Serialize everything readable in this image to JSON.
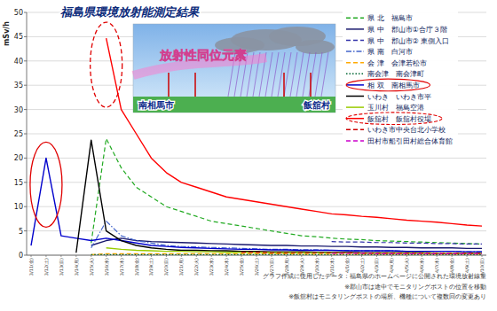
{
  "chart_data": {
    "type": "line",
    "title": "福島県環境放射能測定結果",
    "y_label": "mSv/h",
    "annotations": [
      "放射性同位元素",
      "南相馬市",
      "飯舘村",
      "グラフ作成に使用したデータ：福島県のホームページに公開された環境放射線量",
      "※郡山市は途中でモニタリングポストの位置を移動",
      "※飯舘村はモニタリングポストの場所、機種について複数回の変更あり"
    ],
    "categories": [
      "3/11(金)",
      "3/12(土)",
      "3/13(日)",
      "3/14(月)",
      "3/15(火)",
      "3/16(水)",
      "3/17(木)",
      "3/18(金)",
      "3/19(土)",
      "3/20(日)",
      "3/21(月)",
      "3/22(火)",
      "3/23(水)",
      "3/24(木)",
      "3/25(金)",
      "3/26(土)",
      "3/27(日)",
      "3/28(月)",
      "3/29(火)",
      "3/30(水)",
      "3/31(木)",
      "4/1(金)",
      "4/2(土)",
      "4/3(日)",
      "4/4(月)",
      "4/5(火)",
      "4/6(水)",
      "4/7(木)",
      "4/8(金)",
      "4/9(土)",
      "4/10(日)"
    ],
    "ylim": [
      0,
      50
    ],
    "yticks": [
      0,
      5,
      10,
      15,
      20,
      25,
      30,
      35,
      40,
      45,
      50
    ],
    "grid": true,
    "legend": "top-right",
    "series": [
      {
        "name": "県 北　福島市",
        "color": "#22aa22",
        "line_style": "dashed",
        "values": [
          null,
          null,
          null,
          null,
          2.5,
          24,
          18,
          14,
          12,
          10,
          9,
          8,
          7,
          6.5,
          6,
          5.5,
          5,
          4.5,
          4,
          3.8,
          3.5,
          3.3,
          3.2,
          3,
          2.9,
          2.8,
          2.7,
          2.6,
          2.5,
          2.4,
          2.3
        ]
      },
      {
        "name": "県 中　郡山市①合庁３階",
        "color": "#1a1a6e",
        "line_style": "solid",
        "values": [
          null,
          null,
          null,
          null,
          2,
          3,
          3.5,
          3,
          2.8,
          2.7,
          2.6,
          2.5,
          2.4,
          2.3,
          2.2,
          2.1,
          2,
          2,
          1.9,
          1.9,
          1.8,
          1.8,
          1.7,
          1.7,
          1.6,
          1.6,
          1.5,
          1.5,
          1.5,
          1.4,
          1.4
        ]
      },
      {
        "name": "県 中　郡山市② 東側入口",
        "color": "#3333aa",
        "line_style": "dashed",
        "values": [
          null,
          null,
          null,
          null,
          null,
          null,
          null,
          null,
          null,
          null,
          null,
          null,
          null,
          null,
          null,
          null,
          null,
          null,
          null,
          null,
          2.8,
          2.7,
          2.7,
          2.6,
          2.6,
          2.5,
          2.5,
          2.4,
          2.4,
          2.3,
          2.3
        ]
      },
      {
        "name": "県 南　白河市",
        "color": "#4466cc",
        "line_style": "dashdot",
        "values": [
          null,
          null,
          null,
          null,
          1.5,
          7,
          4,
          3,
          2.5,
          2,
          1.8,
          1.7,
          1.6,
          1.5,
          1.4,
          1.3,
          1.2,
          1.2,
          1.1,
          1.1,
          1,
          1,
          0.9,
          0.9,
          0.9,
          0.8,
          0.8,
          0.8,
          0.8,
          0.7,
          0.7
        ]
      },
      {
        "name": "会 津　会津若松市",
        "color": "#ffaa00",
        "line_style": "dashed",
        "values": [
          null,
          null,
          null,
          null,
          0.1,
          0.3,
          0.3,
          0.3,
          0.3,
          0.3,
          0.3,
          0.3,
          0.3,
          0.3,
          0.3,
          0.3,
          0.3,
          0.3,
          0.2,
          0.2,
          0.2,
          0.2,
          0.2,
          0.2,
          0.2,
          0.2,
          0.2,
          0.2,
          0.2,
          0.2,
          0.2
        ]
      },
      {
        "name": "南会津　南会津町",
        "color": "#006633",
        "line_style": "dotted",
        "values": [
          null,
          null,
          null,
          null,
          0.1,
          0.1,
          0.1,
          0.1,
          0.1,
          0.1,
          0.1,
          0.1,
          0.1,
          0.1,
          0.1,
          0.1,
          0.1,
          0.1,
          0.1,
          0.1,
          0.1,
          0.1,
          0.1,
          0.1,
          0.1,
          0.1,
          0.1,
          0.1,
          0.1,
          0.1,
          0.1
        ]
      },
      {
        "name": "相 双　南相馬市",
        "color": "#0000cc",
        "line_style": "solid",
        "values": [
          2,
          20,
          4,
          3.5,
          3,
          3.5,
          3,
          2.5,
          2,
          1.8,
          1.6,
          1.5,
          1.4,
          1.3,
          1.2,
          1.2,
          1.1,
          1.1,
          1,
          1,
          1,
          0.9,
          0.9,
          0.9,
          0.9,
          0.8,
          0.8,
          0.8,
          0.8,
          0.7,
          0.7
        ]
      },
      {
        "name": "いわき　いわき市平",
        "color": "#000000",
        "line_style": "solid",
        "values": [
          null,
          null,
          null,
          0.5,
          23.7,
          5,
          3,
          2,
          1.5,
          1.2,
          1,
          1,
          0.9,
          0.9,
          0.8,
          0.8,
          0.7,
          0.7,
          0.7,
          0.6,
          0.6,
          0.6,
          0.5,
          0.5,
          0.5,
          0.5,
          0.5,
          0.4,
          0.4,
          0.4,
          0.4
        ]
      },
      {
        "name": "玉川村　福島空港",
        "color": "#99cc00",
        "line_style": "solid",
        "values": [
          null,
          null,
          null,
          null,
          null,
          1.5,
          1.2,
          1,
          0.9,
          0.8,
          0.8,
          0.7,
          0.7,
          0.6,
          0.6,
          0.6,
          0.5,
          0.5,
          0.5,
          0.5,
          0.5,
          0.5,
          0.4,
          0.4,
          0.4,
          0.4,
          0.4,
          0.4,
          0.4,
          0.4,
          0.4
        ]
      },
      {
        "name": "飯舘村　飯舘村役場",
        "color": "#ff0000",
        "line_style": "solid",
        "values": [
          null,
          null,
          null,
          null,
          null,
          44.7,
          30,
          25,
          20,
          17,
          15,
          14,
          13,
          12,
          11.5,
          11,
          10.5,
          10,
          9.5,
          9,
          8.5,
          8.3,
          8,
          7.8,
          7.5,
          7.2,
          7,
          6.8,
          6.5,
          6.2,
          6
        ]
      },
      {
        "name": "いわき市中央台北小学校",
        "color": "#cc0000",
        "line_style": "dashed",
        "values": [
          null,
          null,
          null,
          null,
          null,
          null,
          null,
          null,
          null,
          null,
          null,
          null,
          null,
          null,
          0.6,
          0.6,
          0.5,
          0.5,
          0.5,
          0.5,
          0.5,
          0.5,
          0.4,
          0.4,
          0.4,
          0.4,
          0.4,
          0.4,
          0.4,
          0.4,
          0.4
        ]
      },
      {
        "name": "田村市船引田村総合体育館",
        "color": "#cc00cc",
        "line_style": "dashed",
        "values": [
          null,
          null,
          null,
          null,
          null,
          null,
          null,
          null,
          null,
          null,
          null,
          null,
          null,
          null,
          null,
          null,
          null,
          null,
          null,
          null,
          0.4,
          0.4,
          0.4,
          0.3,
          0.3,
          0.3,
          0.3,
          0.3,
          0.3,
          0.3,
          0.3
        ]
      }
    ]
  }
}
